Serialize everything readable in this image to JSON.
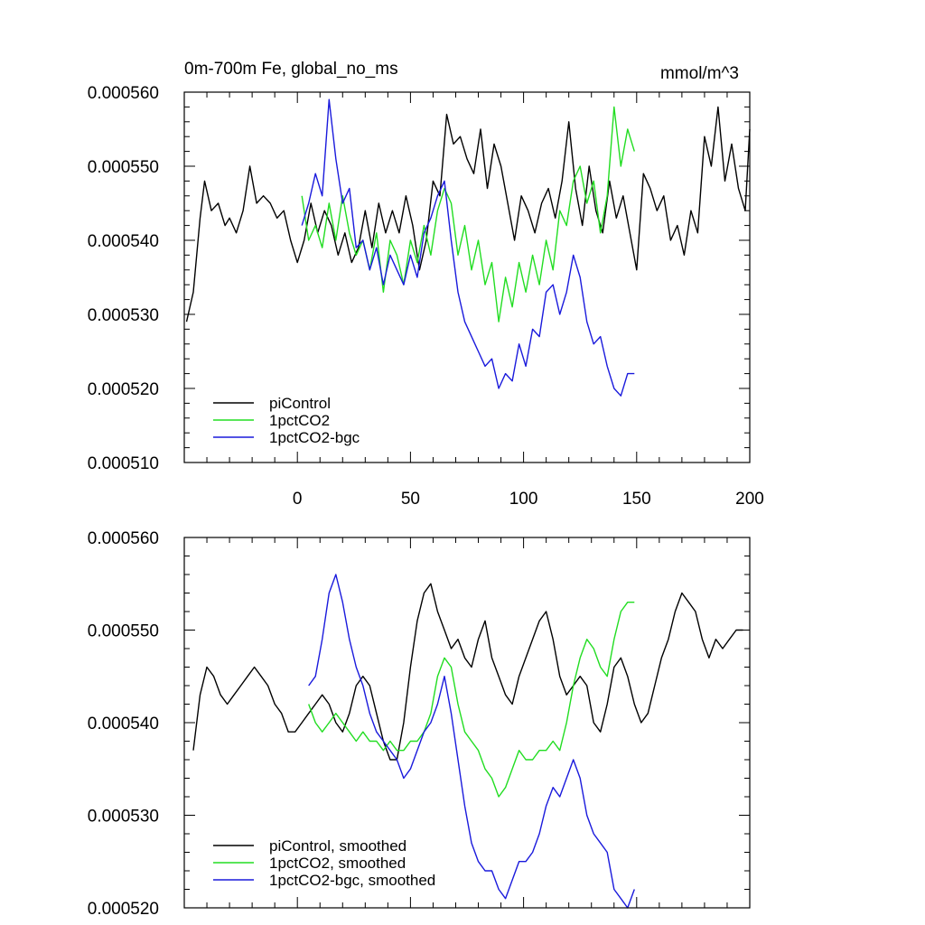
{
  "chart_data": [
    {
      "type": "line",
      "title": "0m-700m Fe, global_no_ms",
      "units": "mmol/m^3",
      "xlim": [
        -50,
        200
      ],
      "xticks": [
        "0",
        "50",
        "100",
        "150",
        "200"
      ],
      "ylim": [
        0.00051,
        0.00056
      ],
      "yticks": [
        "0.000510",
        "0.000520",
        "0.000530",
        "0.000540",
        "0.000550",
        "0.000560"
      ],
      "colors": {
        "piControl": "#000000",
        "1pctCO2": "#22dd22",
        "1pctCO2-bgc": "#1a1adc"
      },
      "series": [
        {
          "name": "piControl",
          "key": "piControl",
          "x": [
            -49,
            -46,
            -43,
            -41,
            -38,
            -35,
            -32,
            -30,
            -27,
            -24,
            -21,
            -18,
            -15,
            -12,
            -9,
            -6,
            -3,
            0,
            3,
            6,
            9,
            12,
            15,
            18,
            21,
            24,
            27,
            30,
            33,
            36,
            39,
            42,
            45,
            48,
            51,
            54,
            57,
            60,
            63,
            66,
            69,
            72,
            75,
            78,
            81,
            84,
            87,
            90,
            93,
            96,
            99,
            102,
            105,
            108,
            111,
            114,
            117,
            120,
            123,
            126,
            129,
            132,
            135,
            138,
            141,
            144,
            147,
            150,
            153,
            156,
            159,
            162,
            165,
            168,
            171,
            174,
            177,
            180,
            183,
            186,
            189,
            192,
            195,
            198,
            200
          ],
          "values": [
            0.000529,
            0.000533,
            0.000543,
            0.000548,
            0.000544,
            0.000545,
            0.000542,
            0.000543,
            0.000541,
            0.000544,
            0.00055,
            0.000545,
            0.000546,
            0.000545,
            0.000543,
            0.000544,
            0.00054,
            0.000537,
            0.00054,
            0.000545,
            0.000541,
            0.000544,
            0.000542,
            0.000538,
            0.000541,
            0.000537,
            0.000539,
            0.000544,
            0.000539,
            0.000545,
            0.000541,
            0.000544,
            0.000541,
            0.000546,
            0.000542,
            0.000536,
            0.00054,
            0.000548,
            0.000546,
            0.000557,
            0.000553,
            0.000554,
            0.000551,
            0.000549,
            0.000555,
            0.000547,
            0.000553,
            0.00055,
            0.000545,
            0.00054,
            0.000546,
            0.000544,
            0.000541,
            0.000545,
            0.000547,
            0.000543,
            0.000548,
            0.000556,
            0.000547,
            0.000542,
            0.00055,
            0.000544,
            0.000541,
            0.000548,
            0.000543,
            0.000546,
            0.000541,
            0.000536,
            0.000549,
            0.000547,
            0.000544,
            0.000546,
            0.00054,
            0.000542,
            0.000538,
            0.000544,
            0.000541,
            0.000554,
            0.00055,
            0.000558,
            0.000548,
            0.000553,
            0.000547,
            0.000544,
            0.000555
          ]
        },
        {
          "name": "1pctCO2",
          "key": "1pctCO2",
          "x": [
            2,
            5,
            8,
            11,
            14,
            17,
            20,
            23,
            26,
            29,
            32,
            35,
            38,
            41,
            44,
            47,
            50,
            53,
            56,
            59,
            62,
            65,
            68,
            71,
            74,
            77,
            80,
            83,
            86,
            89,
            92,
            95,
            98,
            101,
            104,
            107,
            110,
            113,
            116,
            119,
            122,
            125,
            128,
            131,
            134,
            137,
            140,
            143,
            146,
            149
          ],
          "values": [
            0.000546,
            0.00054,
            0.000542,
            0.000539,
            0.000545,
            0.00054,
            0.000546,
            0.000541,
            0.000538,
            0.00054,
            0.000536,
            0.000541,
            0.000533,
            0.00054,
            0.000538,
            0.000534,
            0.00054,
            0.000537,
            0.000542,
            0.000538,
            0.000544,
            0.000547,
            0.000545,
            0.000538,
            0.000542,
            0.000536,
            0.00054,
            0.000534,
            0.000537,
            0.000529,
            0.000535,
            0.000531,
            0.000537,
            0.000533,
            0.000538,
            0.000534,
            0.00054,
            0.000536,
            0.000544,
            0.000542,
            0.000548,
            0.00055,
            0.000545,
            0.000548,
            0.000541,
            0.000546,
            0.000558,
            0.00055,
            0.000555,
            0.000552
          ]
        },
        {
          "name": "1pctCO2-bgc",
          "key": "1pctCO2-bgc",
          "x": [
            2,
            5,
            8,
            11,
            14,
            17,
            20,
            23,
            26,
            29,
            32,
            35,
            38,
            41,
            44,
            47,
            50,
            53,
            56,
            59,
            62,
            65,
            68,
            71,
            74,
            77,
            80,
            83,
            86,
            89,
            92,
            95,
            98,
            101,
            104,
            107,
            110,
            113,
            116,
            119,
            122,
            125,
            128,
            131,
            134,
            137,
            140,
            143,
            146,
            149
          ],
          "values": [
            0.000542,
            0.000545,
            0.000549,
            0.000546,
            0.000559,
            0.000551,
            0.000545,
            0.000547,
            0.000539,
            0.00054,
            0.000536,
            0.000539,
            0.000534,
            0.000538,
            0.000536,
            0.000534,
            0.000538,
            0.000535,
            0.000541,
            0.000543,
            0.000546,
            0.000548,
            0.00054,
            0.000533,
            0.000529,
            0.000527,
            0.000525,
            0.000523,
            0.000524,
            0.00052,
            0.000522,
            0.000521,
            0.000526,
            0.000523,
            0.000528,
            0.000527,
            0.000533,
            0.000534,
            0.00053,
            0.000533,
            0.000538,
            0.000535,
            0.000529,
            0.000526,
            0.000527,
            0.000523,
            0.00052,
            0.000519,
            0.000522,
            0.000522
          ]
        }
      ],
      "legend": {
        "position": "bottom-left",
        "entries": [
          {
            "label": "piControl",
            "key": "piControl"
          },
          {
            "label": "1pctCO2",
            "key": "1pctCO2"
          },
          {
            "label": "1pctCO2-bgc",
            "key": "1pctCO2-bgc"
          }
        ]
      }
    },
    {
      "type": "line",
      "title": "",
      "units": "",
      "xlim": [
        -50,
        200
      ],
      "ylim": [
        0.00052,
        0.00056
      ],
      "yticks": [
        "0.000520",
        "0.000530",
        "0.000540",
        "0.000550",
        "0.000560"
      ],
      "colors": {
        "piControl": "#000000",
        "1pctCO2": "#22dd22",
        "1pctCO2-bgc": "#1a1adc"
      },
      "series": [
        {
          "name": "piControl, smoothed",
          "key": "piControl",
          "x": [
            -46,
            -43,
            -40,
            -37,
            -34,
            -31,
            -28,
            -25,
            -22,
            -19,
            -16,
            -13,
            -10,
            -7,
            -4,
            -1,
            2,
            5,
            8,
            11,
            14,
            17,
            20,
            23,
            26,
            29,
            32,
            35,
            38,
            41,
            44,
            47,
            50,
            53,
            56,
            59,
            62,
            65,
            68,
            71,
            74,
            77,
            80,
            83,
            86,
            89,
            92,
            95,
            98,
            101,
            104,
            107,
            110,
            113,
            116,
            119,
            122,
            125,
            128,
            131,
            134,
            137,
            140,
            143,
            146,
            149,
            152,
            155,
            158,
            161,
            164,
            167,
            170,
            173,
            176,
            179,
            182,
            185,
            188,
            191,
            194,
            197
          ],
          "values": [
            0.000537,
            0.000543,
            0.000546,
            0.000545,
            0.000543,
            0.000542,
            0.000543,
            0.000544,
            0.000545,
            0.000546,
            0.000545,
            0.000544,
            0.000542,
            0.000541,
            0.000539,
            0.000539,
            0.00054,
            0.000541,
            0.000542,
            0.000543,
            0.000542,
            0.00054,
            0.000539,
            0.000541,
            0.000544,
            0.000545,
            0.000544,
            0.000541,
            0.000538,
            0.000536,
            0.000536,
            0.00054,
            0.000546,
            0.000551,
            0.000554,
            0.000555,
            0.000552,
            0.00055,
            0.000548,
            0.000549,
            0.000547,
            0.000546,
            0.000549,
            0.000551,
            0.000547,
            0.000545,
            0.000543,
            0.000542,
            0.000545,
            0.000547,
            0.000549,
            0.000551,
            0.000552,
            0.000549,
            0.000545,
            0.000543,
            0.000544,
            0.000545,
            0.000544,
            0.00054,
            0.000539,
            0.000542,
            0.000546,
            0.000547,
            0.000545,
            0.000542,
            0.00054,
            0.000541,
            0.000544,
            0.000547,
            0.000549,
            0.000552,
            0.000554,
            0.000553,
            0.000552,
            0.000549,
            0.000547,
            0.000549,
            0.000548,
            0.000549,
            0.00055,
            0.00055
          ]
        },
        {
          "name": "1pctCO2, smoothed",
          "key": "1pctCO2",
          "x": [
            5,
            8,
            11,
            14,
            17,
            20,
            23,
            26,
            29,
            32,
            35,
            38,
            41,
            44,
            47,
            50,
            53,
            56,
            59,
            62,
            65,
            68,
            71,
            74,
            77,
            80,
            83,
            86,
            89,
            92,
            95,
            98,
            101,
            104,
            107,
            110,
            113,
            116,
            119,
            122,
            125,
            128,
            131,
            134,
            137,
            140,
            143,
            146,
            149
          ],
          "values": [
            0.000542,
            0.00054,
            0.000539,
            0.00054,
            0.000541,
            0.00054,
            0.000539,
            0.000538,
            0.000539,
            0.000538,
            0.000538,
            0.000537,
            0.000538,
            0.000537,
            0.000537,
            0.000538,
            0.000538,
            0.000539,
            0.000541,
            0.000545,
            0.000547,
            0.000546,
            0.000542,
            0.000539,
            0.000538,
            0.000537,
            0.000535,
            0.000534,
            0.000532,
            0.000533,
            0.000535,
            0.000537,
            0.000536,
            0.000536,
            0.000537,
            0.000537,
            0.000538,
            0.000537,
            0.00054,
            0.000544,
            0.000547,
            0.000549,
            0.000548,
            0.000546,
            0.000545,
            0.000549,
            0.000552,
            0.000553,
            0.000553
          ]
        },
        {
          "name": "1pctCO2-bgc, smoothed",
          "key": "1pctCO2-bgc",
          "x": [
            5,
            8,
            11,
            14,
            17,
            20,
            23,
            26,
            29,
            32,
            35,
            38,
            41,
            44,
            47,
            50,
            53,
            56,
            59,
            62,
            65,
            68,
            71,
            74,
            77,
            80,
            83,
            86,
            89,
            92,
            95,
            98,
            101,
            104,
            107,
            110,
            113,
            116,
            119,
            122,
            125,
            128,
            131,
            134,
            137,
            140,
            143,
            146,
            149
          ],
          "values": [
            0.000544,
            0.000545,
            0.000549,
            0.000554,
            0.000556,
            0.000553,
            0.000549,
            0.000546,
            0.000544,
            0.000541,
            0.000539,
            0.000538,
            0.000537,
            0.000536,
            0.000534,
            0.000535,
            0.000537,
            0.000539,
            0.00054,
            0.000542,
            0.000545,
            0.000541,
            0.000536,
            0.000531,
            0.000527,
            0.000525,
            0.000524,
            0.000524,
            0.000522,
            0.000521,
            0.000523,
            0.000525,
            0.000525,
            0.000526,
            0.000528,
            0.000531,
            0.000533,
            0.000532,
            0.000534,
            0.000536,
            0.000534,
            0.00053,
            0.000528,
            0.000527,
            0.000526,
            0.000522,
            0.000521,
            0.00052,
            0.000522
          ]
        }
      ],
      "legend": {
        "position": "bottom-left",
        "entries": [
          {
            "label": "piControl, smoothed",
            "key": "piControl"
          },
          {
            "label": "1pctCO2, smoothed",
            "key": "1pctCO2"
          },
          {
            "label": "1pctCO2-bgc, smoothed",
            "key": "1pctCO2-bgc"
          }
        ]
      }
    }
  ]
}
